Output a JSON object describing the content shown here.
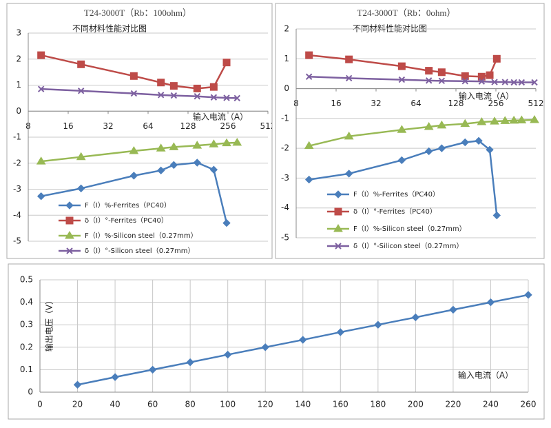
{
  "chart_data": [
    {
      "type": "line",
      "title": "T24-3000T（Rb：100ohm）",
      "subtitle": "不同材料性能对比图",
      "x_label": "输入电流（A）",
      "xscale": "log",
      "xlim": [
        8,
        512
      ],
      "xticks": [
        8,
        16,
        32,
        64,
        128,
        256,
        512
      ],
      "ylim": [
        -5,
        3
      ],
      "yticks": [
        -5,
        -4,
        -3,
        -2,
        -1,
        0,
        1,
        2,
        3
      ],
      "grid": true,
      "series": [
        {
          "name": "F（I）%-Ferrites（PC40）",
          "color": "#4a7ebb",
          "marker": "diamond",
          "x": [
            10,
            20,
            50,
            80,
            100,
            150,
            200,
            250
          ],
          "values": [
            -3.27,
            -2.97,
            -2.48,
            -2.28,
            -2.07,
            -1.98,
            -2.25,
            -4.3
          ]
        },
        {
          "name": "δ（I）°-Ferrites（PC40）",
          "color": "#be4b48",
          "marker": "square",
          "x": [
            10,
            20,
            50,
            80,
            100,
            150,
            200,
            250
          ],
          "values": [
            2.15,
            1.8,
            1.35,
            1.1,
            0.97,
            0.87,
            0.93,
            1.87
          ]
        },
        {
          "name": "F（I）%-Silicon steel（0.27mm）",
          "color": "#98b954",
          "marker": "triangle",
          "x": [
            10,
            20,
            50,
            80,
            100,
            150,
            200,
            250,
            300
          ],
          "values": [
            -1.93,
            -1.76,
            -1.53,
            -1.43,
            -1.38,
            -1.32,
            -1.27,
            -1.23,
            -1.21
          ]
        },
        {
          "name": "δ（I）°-Silicon steel（0.27mm）",
          "color": "#7d60a0",
          "marker": "cross",
          "x": [
            10,
            20,
            50,
            80,
            100,
            150,
            200,
            250,
            300
          ],
          "values": [
            0.85,
            0.78,
            0.68,
            0.62,
            0.6,
            0.57,
            0.53,
            0.51,
            0.5
          ]
        }
      ]
    },
    {
      "type": "line",
      "title": "T24-3000T（Rb：0ohm）",
      "subtitle": "不同材料性能对比图",
      "x_label": "输入电流（A）",
      "xscale": "log",
      "xlim": [
        8,
        512
      ],
      "xticks": [
        8,
        16,
        32,
        64,
        128,
        256,
        512
      ],
      "ylim": [
        -5,
        2
      ],
      "yticks": [
        -5,
        -4,
        -3,
        -2,
        -1,
        0,
        1,
        2
      ],
      "grid": true,
      "series": [
        {
          "name": "F（I）%-Ferrites（PC40）",
          "color": "#4a7ebb",
          "marker": "diamond",
          "x": [
            10,
            20,
            50,
            80,
            100,
            150,
            190,
            230,
            260
          ],
          "values": [
            -3.05,
            -2.85,
            -2.4,
            -2.1,
            -2.0,
            -1.8,
            -1.75,
            -2.05,
            -4.25
          ]
        },
        {
          "name": "δ（I）°-Ferrites（PC40）",
          "color": "#be4b48",
          "marker": "square",
          "x": [
            10,
            20,
            50,
            80,
            100,
            150,
            200,
            230,
            260
          ],
          "values": [
            1.12,
            0.98,
            0.75,
            0.6,
            0.55,
            0.42,
            0.4,
            0.45,
            1.0
          ]
        },
        {
          "name": "F（I）%-Silicon steel（0.27mm）",
          "color": "#98b954",
          "marker": "triangle",
          "x": [
            10,
            20,
            50,
            80,
            100,
            150,
            200,
            250,
            300,
            350,
            400,
            500
          ],
          "values": [
            -1.92,
            -1.6,
            -1.38,
            -1.28,
            -1.23,
            -1.18,
            -1.12,
            -1.1,
            -1.08,
            -1.07,
            -1.06,
            -1.05
          ]
        },
        {
          "name": "δ（I）°-Silicon steel（0.27mm）",
          "color": "#7d60a0",
          "marker": "cross",
          "x": [
            10,
            20,
            50,
            80,
            100,
            150,
            200,
            250,
            300,
            350,
            400,
            500
          ],
          "values": [
            0.4,
            0.35,
            0.3,
            0.27,
            0.26,
            0.25,
            0.24,
            0.22,
            0.22,
            0.21,
            0.21,
            0.21
          ]
        }
      ]
    },
    {
      "type": "line",
      "y_label": "输出电压（V）",
      "x_label": "输入电流（A）",
      "xlim": [
        0,
        260
      ],
      "xticks": [
        0,
        20,
        40,
        60,
        80,
        100,
        120,
        140,
        160,
        180,
        200,
        220,
        240,
        260
      ],
      "ylim": [
        0,
        0.5
      ],
      "yticks": [
        0,
        0.1,
        0.2,
        0.3,
        0.4,
        0.5
      ],
      "grid": true,
      "xgrid": true,
      "series": [
        {
          "color": "#4a7ebb",
          "marker": "diamond",
          "x": [
            20,
            40,
            60,
            80,
            100,
            120,
            140,
            160,
            180,
            200,
            220,
            240,
            260
          ],
          "values": [
            0.033,
            0.067,
            0.1,
            0.133,
            0.167,
            0.2,
            0.233,
            0.267,
            0.3,
            0.333,
            0.367,
            0.4,
            0.433
          ]
        }
      ]
    }
  ]
}
